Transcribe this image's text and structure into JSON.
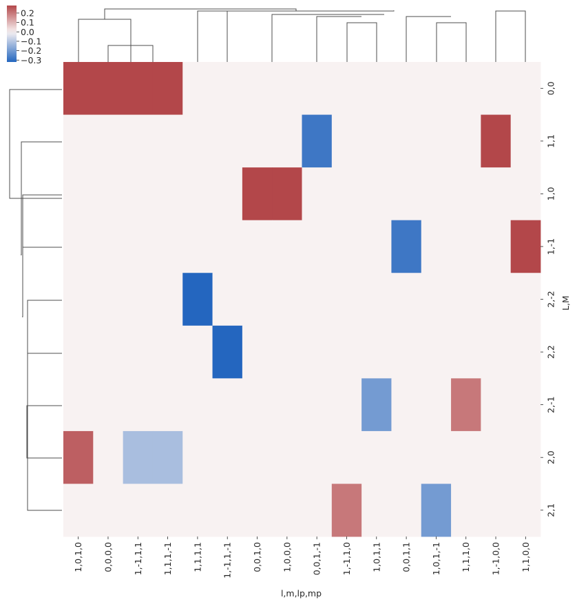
{
  "chart_data": {
    "type": "heatmap",
    "title": "",
    "xlabel": "l,m,lp,mp",
    "ylabel": "L,M",
    "columns": [
      "1,0,1,0",
      "0,0,0,0",
      "1,-1,1,1",
      "1,1,1,-1",
      "1,1,1,1",
      "1,-1,1,-1",
      "0,0,1,0",
      "1,0,0,0",
      "0,0,1,-1",
      "1,-1,1,0",
      "1,0,1,1",
      "0,0,1,1",
      "1,0,1,-1",
      "1,1,1,0",
      "1,-1,0,0",
      "1,1,0,0"
    ],
    "rows": [
      "0,0",
      "1,1",
      "1,0",
      "1,-1",
      "2,-2",
      "2,2",
      "2,-1",
      "2,0",
      "2,1"
    ],
    "values": [
      [
        0.28,
        0.28,
        0.28,
        0.28,
        0,
        0,
        0,
        0,
        0,
        0,
        0,
        0,
        0,
        0,
        0,
        0
      ],
      [
        0,
        0,
        0,
        0,
        0,
        0,
        0,
        0,
        -0.28,
        0,
        0,
        0,
        0,
        0,
        0.28,
        0
      ],
      [
        0,
        0,
        0,
        0,
        0,
        0,
        0.28,
        0.28,
        0,
        0,
        0,
        0,
        0,
        0,
        0,
        0
      ],
      [
        0,
        0,
        0,
        0,
        0,
        0,
        0,
        0,
        0,
        0,
        0,
        -0.28,
        0,
        0,
        0,
        0.28
      ],
      [
        0,
        0,
        0,
        0,
        -0.32,
        0,
        0,
        0,
        0,
        0,
        0,
        0,
        0,
        0,
        0,
        0
      ],
      [
        0,
        0,
        0,
        0,
        0,
        -0.32,
        0,
        0,
        0,
        0,
        0,
        0,
        0,
        0,
        0,
        0
      ],
      [
        0,
        0,
        0,
        0,
        0,
        0,
        0,
        0,
        0,
        0,
        -0.2,
        0,
        0,
        0.2,
        0,
        0
      ],
      [
        0.24,
        0,
        -0.12,
        -0.12,
        0,
        0,
        0,
        0,
        0,
        0,
        0,
        0,
        0,
        0,
        0,
        0
      ],
      [
        0,
        0,
        0,
        0,
        0,
        0,
        0,
        0,
        0,
        0.2,
        0,
        0,
        -0.2,
        0,
        0,
        0
      ]
    ],
    "colorbar": {
      "ticks": [
        "0.2",
        "0.1",
        "0.0",
        "−0.1",
        "−0.2",
        "−0.3"
      ],
      "tick_values": [
        0.2,
        0.1,
        0.0,
        -0.1,
        -0.2,
        -0.3
      ],
      "vmin": -0.32,
      "vmax": 0.28,
      "colormap": "vlag"
    },
    "row_dendrogram": true,
    "col_dendrogram": true
  },
  "colors": {
    "red": "#b3474a",
    "blue": "#2466bf",
    "neutral": "#f8f2f2",
    "line": "#4d4d4d",
    "text": "#262626"
  }
}
